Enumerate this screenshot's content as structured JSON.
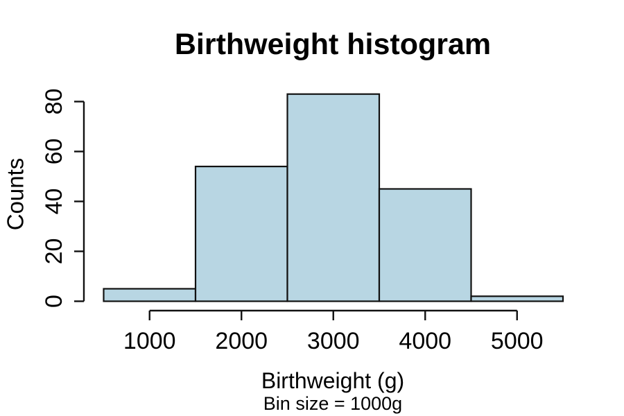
{
  "figure": {
    "background_color": "#ffffff"
  },
  "chart_data": {
    "type": "bar",
    "chart_kind": "histogram",
    "title": "Birthweight histogram",
    "xlabel": "Birthweight (g)",
    "xlabel_note": "Bin size = 1000g",
    "ylabel": "Counts",
    "bin_size_g": 1000,
    "bin_edges": [
      500,
      1500,
      2500,
      3500,
      4500,
      5500
    ],
    "counts": [
      5,
      54,
      83,
      45,
      2
    ],
    "x_ticks": [
      1000,
      2000,
      3000,
      4000,
      5000
    ],
    "y_ticks": [
      0,
      20,
      40,
      60,
      80
    ],
    "xlim": [
      500,
      5500
    ],
    "ylim": [
      0,
      83
    ],
    "grid": false,
    "legend": null,
    "bar_fill": "#B8D6E3",
    "bar_stroke": "#111111",
    "axis_color": "#111111",
    "text_color": "#000000"
  }
}
